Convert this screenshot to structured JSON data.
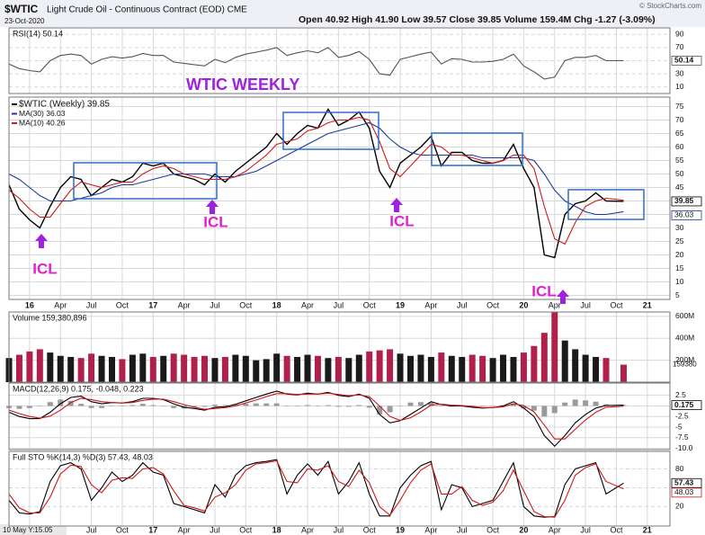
{
  "chart_data": {
    "type": "financial",
    "symbol": "$WTIC",
    "name": "Light Crude Oil - Continuous Contract (EOD) CME",
    "date": "23-Oct-2020",
    "quote": "Open 40.92 High 41.90 Low 39.57 Close 39.85 Volume 159.4M Chg -1.27 (-3.09%)",
    "credit": "© StockCharts.com",
    "cursor_readout": "10 May Y:15.05",
    "x": [
      -2,
      -1,
      0,
      1,
      2,
      3,
      4,
      5,
      6,
      7,
      8,
      9,
      10,
      11,
      12,
      13,
      14,
      15,
      16,
      17,
      18,
      19,
      20,
      21,
      22,
      23,
      24,
      25,
      26,
      27,
      28,
      29,
      30,
      31,
      32,
      33,
      34,
      35,
      36,
      37,
      38,
      39,
      40,
      41,
      42,
      43,
      44,
      45,
      46,
      47,
      48,
      49,
      50,
      51,
      52,
      53,
      54,
      55,
      56,
      57.7
    ],
    "xlim": [
      -2,
      62.2
    ],
    "xticks": [
      {
        "value": 0,
        "label": "16"
      },
      {
        "value": 3,
        "label": "Apr"
      },
      {
        "value": 6,
        "label": "Jul"
      },
      {
        "value": 9,
        "label": "Oct"
      },
      {
        "value": 12,
        "label": "17"
      },
      {
        "value": 15,
        "label": "Apr"
      },
      {
        "value": 18,
        "label": "Jul"
      },
      {
        "value": 21,
        "label": "Oct"
      },
      {
        "value": 24,
        "label": "18"
      },
      {
        "value": 27,
        "label": "Apr"
      },
      {
        "value": 30,
        "label": "Jul"
      },
      {
        "value": 33,
        "label": "Oct"
      },
      {
        "value": 36,
        "label": "19"
      },
      {
        "value": 39,
        "label": "Apr"
      },
      {
        "value": 42,
        "label": "Jul"
      },
      {
        "value": 45,
        "label": "Oct"
      },
      {
        "value": 48,
        "label": "20"
      },
      {
        "value": 51,
        "label": "Apr"
      },
      {
        "value": 54,
        "label": "Jul"
      },
      {
        "value": 57,
        "label": "Oct"
      },
      {
        "value": 60,
        "label": "21"
      }
    ],
    "grid": true,
    "panels": [
      {
        "type": "line",
        "label": "RSI(14) 50.14",
        "ylim": [
          0,
          100
        ],
        "yticks": [
          90,
          70,
          50,
          30,
          10
        ],
        "tags": [
          50.14
        ],
        "series": [
          {
            "color": "#555555",
            "values": [
              45,
              38,
              35,
              33,
              50,
              58,
              60,
              58,
              45,
              52,
              56,
              54,
              56,
              61,
              58,
              58,
              48,
              46,
              44,
              42,
              52,
              47,
              55,
              60,
              63,
              66,
              70,
              58,
              62,
              65,
              62,
              70,
              55,
              58,
              64,
              52,
              30,
              28,
              52,
              56,
              60,
              63,
              45,
              53,
              52,
              48,
              48,
              49,
              52,
              60,
              42,
              33,
              22,
              25,
              50,
              55,
              55,
              58,
              50,
              50.14
            ]
          }
        ]
      },
      {
        "type": "line",
        "ylim": [
          3.5,
          78.5
        ],
        "yticks": [
          75,
          70,
          65,
          60,
          55,
          50,
          45,
          40,
          35,
          30,
          25,
          20,
          15,
          10,
          5
        ],
        "tags": [
          39.85,
          36.03
        ],
        "annotations": [
          "WTIC WEEKLY",
          "ICL",
          "ICL",
          "ICL",
          "ICL"
        ],
        "series": [
          {
            "name": "$WTIC (Weekly) 39.85",
            "color": "#000000",
            "values": [
              46,
              37,
              33,
              30,
              38,
              45,
              49,
              48,
              42,
              45,
              48,
              47,
              49,
              54,
              53,
              54,
              50,
              49,
              48,
              46,
              50,
              47,
              51,
              54,
              57,
              60,
              65,
              61,
              65,
              68,
              67,
              74,
              68,
              70,
              73,
              67,
              51,
              45,
              54,
              57,
              60,
              64,
              53,
              58,
              58,
              55,
              54,
              54,
              55,
              61,
              52,
              45,
              20,
              19,
              35,
              39,
              40,
              43,
              40,
              39.85
            ]
          },
          {
            "name": "MA(30) 36.03",
            "color": "#1a3a9e",
            "values": [
              50,
              48,
              45,
              42,
              40,
              40,
              40,
              41,
              42,
              43,
              45,
              46,
              46,
              47,
              48,
              49,
              50,
              50,
              50,
              50,
              49,
              49,
              49,
              50,
              51,
              53,
              55,
              57,
              59,
              61,
              63,
              65,
              66,
              67,
              68,
              69,
              67,
              63,
              60,
              58,
              57,
              57,
              57,
              57,
              57,
              57,
              56,
              56,
              56,
              56,
              56,
              55,
              50,
              44,
              40,
              38,
              36,
              35,
              35,
              36.03
            ]
          },
          {
            "name": "MA(10) 40.26",
            "color": "#d01818",
            "values": [
              44,
              41,
              37,
              34,
              34,
              39,
              44,
              47,
              46,
              45,
              46,
              47,
              47,
              50,
              52,
              53,
              52,
              50,
              49,
              48,
              48,
              48,
              49,
              51,
              54,
              57,
              61,
              62,
              63,
              66,
              67,
              69,
              70,
              70,
              71,
              70,
              62,
              52,
              49,
              53,
              57,
              61,
              60,
              57,
              57,
              56,
              55,
              54,
              55,
              57,
              57,
              52,
              38,
              26,
              24,
              32,
              38,
              40,
              41,
              40.26
            ]
          }
        ]
      },
      {
        "type": "bar",
        "label": "Volume 159,380,896",
        "latest_label": "159380",
        "ylim": [
          0,
          640000000
        ],
        "yticks": [
          {
            "value": 200000000,
            "label": "200M"
          },
          {
            "value": 400000000,
            "label": "400M"
          },
          {
            "value": 600000000,
            "label": "600M"
          }
        ],
        "up_color": "#1a1a1a",
        "down_color": "#b0204a",
        "values": [
          220000000,
          250000000,
          280000000,
          300000000,
          270000000,
          240000000,
          230000000,
          220000000,
          260000000,
          240000000,
          230000000,
          210000000,
          250000000,
          260000000,
          230000000,
          240000000,
          260000000,
          250000000,
          230000000,
          240000000,
          220000000,
          230000000,
          250000000,
          240000000,
          200000000,
          210000000,
          260000000,
          240000000,
          230000000,
          250000000,
          240000000,
          220000000,
          230000000,
          220000000,
          250000000,
          280000000,
          290000000,
          300000000,
          260000000,
          240000000,
          250000000,
          230000000,
          270000000,
          240000000,
          230000000,
          250000000,
          240000000,
          220000000,
          250000000,
          230000000,
          270000000,
          330000000,
          450000000,
          640000000,
          380000000,
          300000000,
          250000000,
          230000000,
          220000000,
          159380896
        ]
      },
      {
        "type": "line",
        "label": "MACD(12,26,9) 0.175, -0.048, 0.223",
        "ylim": [
          -10.3,
          5.4
        ],
        "yticks": [
          2.5,
          0,
          -2.5,
          -5,
          -7.5,
          {
            "value": -10,
            "label": "-10.0"
          }
        ],
        "tags": [
          0.175
        ],
        "histogram": {
          "color": "#9a9a9a",
          "values": [
            -0.5,
            -0.7,
            -0.5,
            -0.1,
            0.9,
            1.5,
            1.2,
            0.5,
            -0.5,
            -0.5,
            0,
            0,
            0.2,
            0.5,
            0.2,
            -0.1,
            -0.5,
            -0.6,
            -0.3,
            -0.2,
            0.3,
            0.2,
            0.4,
            0.5,
            0.6,
            0.6,
            0.6,
            -0.1,
            -0.1,
            0.2,
            0,
            0.2,
            -0.2,
            -0.2,
            0.2,
            -0.4,
            -2,
            -1.5,
            -0.1,
            0.8,
            0.9,
            0.8,
            -0.1,
            -0.2,
            -0.1,
            -0.2,
            -0.1,
            0,
            0.2,
            0.5,
            -0.6,
            -1.1,
            -2.5,
            -1.7,
            0.8,
            1.5,
            1.3,
            1,
            0.4,
            0.223
          ]
        },
        "series": [
          {
            "color": "#000000",
            "values": [
              -1.5,
              -2.5,
              -3,
              -3,
              -1.5,
              0.5,
              2,
              2.3,
              1,
              0.5,
              0.8,
              0.7,
              1,
              1.8,
              1.8,
              1.5,
              0.5,
              -0.3,
              -0.6,
              -1,
              -0.3,
              -0.2,
              0.4,
              1.2,
              2,
              2.8,
              3.5,
              2.8,
              2.6,
              3,
              2.8,
              3.2,
              2.5,
              2.2,
              2.8,
              1.8,
              -2,
              -4,
              -3.5,
              -2,
              -0.5,
              1,
              0.3,
              0,
              0,
              -0.3,
              -0.5,
              -0.4,
              0,
              1,
              -0.5,
              -2.5,
              -7,
              -9.5,
              -7,
              -4,
              -2,
              -0.5,
              0.1,
              0.175
            ]
          },
          {
            "color": "#d01818",
            "values": [
              -1,
              -1.8,
              -2.5,
              -2.9,
              -2.4,
              -1,
              0.8,
              1.8,
              1.5,
              1,
              0.8,
              0.7,
              0.8,
              1.3,
              1.6,
              1.6,
              1,
              0.3,
              -0.3,
              -0.8,
              -0.6,
              -0.4,
              0,
              0.7,
              1.4,
              2.2,
              2.9,
              2.9,
              2.7,
              2.8,
              2.8,
              3,
              2.7,
              2.4,
              2.6,
              2.2,
              0,
              -2.5,
              -3.4,
              -2.8,
              -1.4,
              0.2,
              0.4,
              0.2,
              0.1,
              -0.1,
              -0.4,
              -0.4,
              -0.2,
              0.5,
              0.1,
              -1.4,
              -4.5,
              -7.8,
              -7.8,
              -5.5,
              -3.3,
              -1.5,
              -0.3,
              -0.048
            ]
          }
        ]
      },
      {
        "type": "line",
        "label": "Full STO %K(14,3) %D(3) 57.43, 48.03",
        "ylim": [
          -11,
          108
        ],
        "yticks": [
          80,
          50,
          20
        ],
        "tags": [
          57.43,
          48.03
        ],
        "series": [
          {
            "color": "#000000",
            "values": [
              30,
              10,
              8,
              12,
              60,
              85,
              90,
              80,
              30,
              50,
              75,
              60,
              70,
              90,
              75,
              70,
              25,
              20,
              15,
              10,
              55,
              35,
              70,
              85,
              90,
              92,
              95,
              40,
              70,
              88,
              70,
              92,
              40,
              60,
              90,
              40,
              5,
              5,
              50,
              70,
              85,
              92,
              15,
              55,
              50,
              20,
              25,
              30,
              60,
              90,
              20,
              5,
              3,
              4,
              55,
              80,
              85,
              90,
              40,
              57.43
            ]
          },
          {
            "color": "#d01818",
            "values": [
              40,
              18,
              10,
              10,
              35,
              72,
              86,
              84,
              55,
              42,
              62,
              66,
              65,
              80,
              82,
              72,
              45,
              22,
              18,
              13,
              35,
              42,
              55,
              78,
              88,
              90,
              93,
              60,
              58,
              80,
              78,
              85,
              60,
              52,
              78,
              58,
              20,
              6,
              30,
              58,
              78,
              88,
              40,
              40,
              52,
              30,
              22,
              27,
              45,
              78,
              45,
              12,
              4,
              3,
              30,
              70,
              82,
              88,
              60,
              48.03
            ]
          }
        ]
      }
    ]
  }
}
